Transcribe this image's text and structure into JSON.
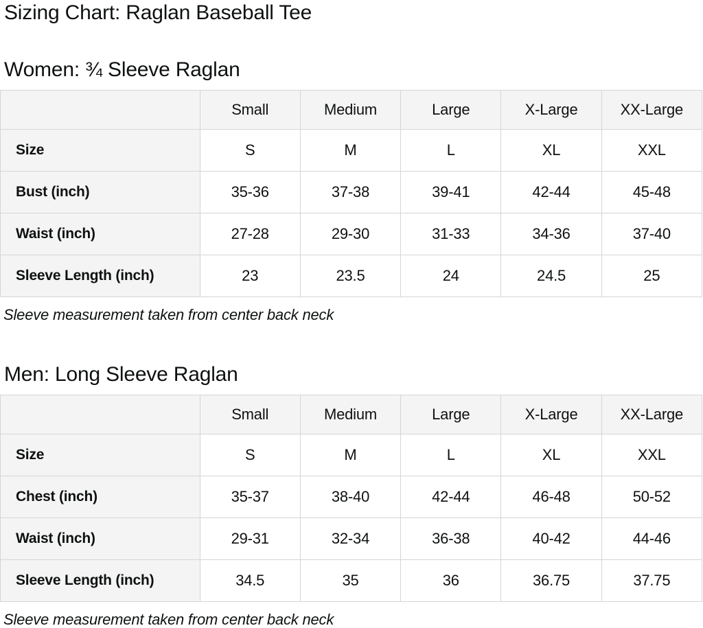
{
  "page": {
    "title": "Sizing Chart: Raglan Baseball Tee"
  },
  "colors": {
    "text": "#0f1111",
    "table_header_bg": "#f4f4f4",
    "table_border": "#d5d5d5",
    "cell_bg": "#ffffff",
    "page_bg": "#ffffff"
  },
  "sections": [
    {
      "heading": "Women: ¾ Sleeve Raglan",
      "footnote": "Sleeve measurement taken from center back neck",
      "table": {
        "header": [
          "",
          "Small",
          "Medium",
          "Large",
          "X-Large",
          "XX-Large"
        ],
        "rows": [
          {
            "label": "Size",
            "values": [
              "S",
              "M",
              "L",
              "XL",
              "XXL"
            ]
          },
          {
            "label": "Bust (inch)",
            "values": [
              "35-36",
              "37-38",
              "39-41",
              "42-44",
              "45-48"
            ]
          },
          {
            "label": "Waist (inch)",
            "values": [
              "27-28",
              "29-30",
              "31-33",
              "34-36",
              "37-40"
            ]
          },
          {
            "label": "Sleeve Length (inch)",
            "values": [
              "23",
              "23.5",
              "24",
              "24.5",
              "25"
            ]
          }
        ]
      }
    },
    {
      "heading": "Men: Long Sleeve Raglan",
      "footnote": "Sleeve measurement taken from center back neck",
      "table": {
        "header": [
          "",
          "Small",
          "Medium",
          "Large",
          "X-Large",
          "XX-Large"
        ],
        "rows": [
          {
            "label": "Size",
            "values": [
              "S",
              "M",
              "L",
              "XL",
              "XXL"
            ]
          },
          {
            "label": "Chest (inch)",
            "values": [
              "35-37",
              "38-40",
              "42-44",
              "46-48",
              "50-52"
            ]
          },
          {
            "label": "Waist (inch)",
            "values": [
              "29-31",
              "32-34",
              "36-38",
              "40-42",
              "44-46"
            ]
          },
          {
            "label": "Sleeve Length (inch)",
            "values": [
              "34.5",
              "35",
              "36",
              "36.75",
              "37.75"
            ]
          }
        ]
      }
    }
  ]
}
